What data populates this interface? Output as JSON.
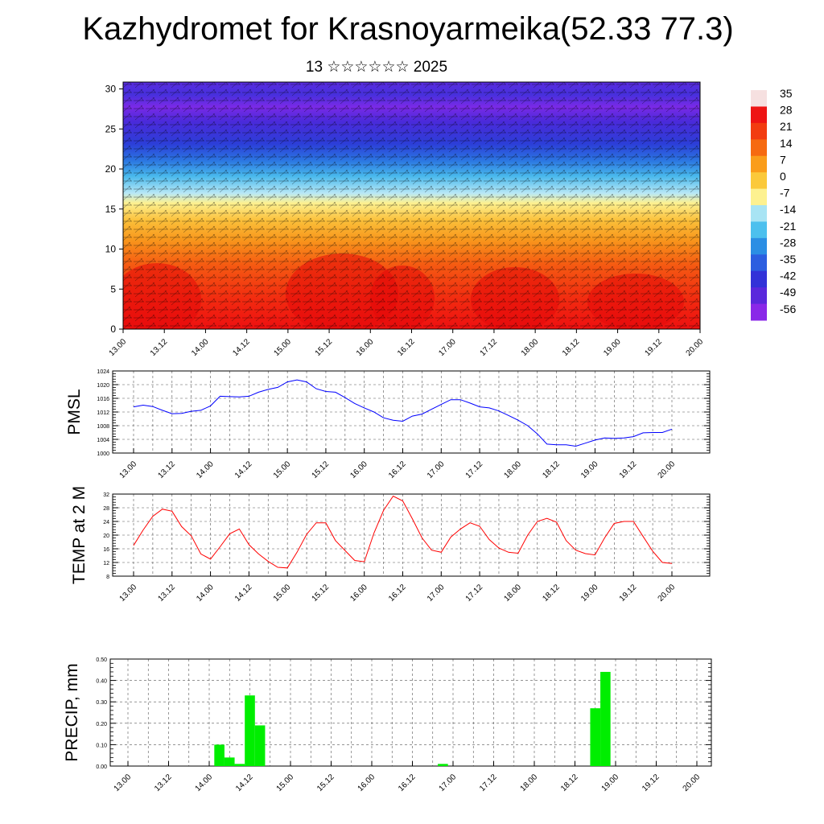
{
  "title": "Kazhydromet for Krasnoyarmeika(52.33 77.3)",
  "subtitle": "13 ☆☆☆☆☆☆ 2025",
  "time_labels": [
    "13.00",
    "13.12",
    "14.00",
    "14.12",
    "15.00",
    "15.12",
    "16.00",
    "16.12",
    "17.00",
    "17.12",
    "18.00",
    "18.12",
    "19.00",
    "19.12",
    "20.00"
  ],
  "chart_data": [
    {
      "type": "heatmap",
      "name": "upper-air-section",
      "y_ticks": [
        "0",
        "5",
        "10",
        "15",
        "20",
        "25",
        "30"
      ],
      "ylim": [
        0,
        30
      ],
      "xlim": [
        "13.00",
        "20.00"
      ],
      "colorbar_labels": [
        "35",
        "28",
        "21",
        "14",
        "7",
        "0",
        "-7",
        "-14",
        "-21",
        "-28",
        "-35",
        "-42",
        "-49",
        "-56"
      ],
      "colorbar_colors": [
        "#f6e0e0",
        "#ee1414",
        "#f23c10",
        "#f66a10",
        "#fa9d1a",
        "#fbc93a",
        "#fdf190",
        "#a8e4f4",
        "#4cc0ee",
        "#2b8ee4",
        "#2c5ee0",
        "#3232d8",
        "#5a28dc",
        "#8a28e8"
      ],
      "note_fields": "temperature (filled) with wind barbs"
    },
    {
      "type": "line",
      "name": "pmsl",
      "ylabel": "PMSL",
      "ylim": [
        1000,
        1024
      ],
      "y_ticks": [
        "1000",
        "1004",
        "1008",
        "1012",
        "1016",
        "1020",
        "1024"
      ],
      "color": "#0000ff",
      "x": [
        0,
        3,
        6,
        9,
        12,
        15,
        18,
        21,
        24,
        27,
        30,
        33,
        36,
        39,
        42,
        45,
        48,
        51,
        54,
        57,
        60,
        63,
        66,
        69,
        72,
        75,
        78,
        81,
        84,
        87,
        90,
        93,
        96,
        99,
        102,
        105,
        108,
        111,
        114,
        117,
        120,
        123,
        126,
        129,
        132,
        135,
        138,
        141,
        144,
        147,
        150,
        153,
        156,
        159,
        162,
        165,
        168
      ],
      "values": [
        1013.5,
        1014.0,
        1013.6,
        1012.5,
        1011.5,
        1011.6,
        1012.2,
        1012.5,
        1013.8,
        1016.6,
        1016.5,
        1016.4,
        1016.6,
        1017.8,
        1018.6,
        1019.2,
        1020.8,
        1021.4,
        1020.8,
        1018.8,
        1018.0,
        1017.8,
        1016.2,
        1014.5,
        1013.2,
        1012.0,
        1010.3,
        1009.6,
        1009.3,
        1010.8,
        1011.4,
        1012.8,
        1014.2,
        1015.6,
        1015.6,
        1014.6,
        1013.5,
        1013.2,
        1012.3,
        1011.0,
        1009.6,
        1008.0,
        1005.6,
        1002.6,
        1002.4,
        1002.4,
        1002.0,
        1002.9,
        1003.8,
        1004.4,
        1004.3,
        1004.4,
        1004.8,
        1005.9,
        1006.0,
        1006.0,
        1007.0
      ]
    },
    {
      "type": "line",
      "name": "temp-2m",
      "ylabel": "TEMP at 2 M",
      "ylim": [
        8,
        32
      ],
      "y_ticks": [
        "8",
        "12",
        "16",
        "20",
        "24",
        "28",
        "32"
      ],
      "color": "#ff0000",
      "x": [
        0,
        3,
        6,
        9,
        12,
        15,
        18,
        21,
        24,
        27,
        30,
        33,
        36,
        39,
        42,
        45,
        48,
        51,
        54,
        57,
        60,
        63,
        66,
        69,
        72,
        75,
        78,
        81,
        84,
        87,
        90,
        93,
        96,
        99,
        102,
        105,
        108,
        111,
        114,
        117,
        120,
        123,
        126,
        129,
        132,
        135,
        138,
        141,
        144,
        147,
        150,
        153,
        156,
        159,
        162,
        165,
        168
      ],
      "values": [
        17.0,
        21.5,
        25.5,
        27.6,
        27.0,
        22.5,
        19.8,
        14.5,
        13.0,
        16.6,
        20.4,
        21.8,
        17.2,
        14.5,
        12.3,
        10.6,
        10.4,
        15.0,
        20.2,
        23.6,
        23.6,
        18.4,
        15.5,
        12.6,
        12.2,
        20.6,
        27.2,
        31.4,
        30.0,
        24.8,
        19.2,
        15.6,
        15.0,
        19.4,
        21.8,
        23.6,
        22.6,
        18.7,
        16.2,
        15.0,
        14.7,
        20.0,
        24.0,
        24.9,
        23.8,
        18.4,
        15.6,
        14.6,
        14.2,
        19.2,
        23.4,
        24.0,
        24.0,
        19.6,
        15.3,
        12.0,
        11.7
      ]
    },
    {
      "type": "bar",
      "name": "precip",
      "ylabel": "PRECIP, mm",
      "ylim": [
        0,
        0.5
      ],
      "y_ticks": [
        "0.00",
        "0.10",
        "0.20",
        "0.30",
        "0.40",
        "0.50"
      ],
      "color": "#00ee00",
      "x": [
        27,
        30,
        33,
        36,
        39,
        93,
        138,
        141
      ],
      "values": [
        0.1,
        0.04,
        0.01,
        0.33,
        0.19,
        0.01,
        0.27,
        0.44
      ]
    }
  ]
}
